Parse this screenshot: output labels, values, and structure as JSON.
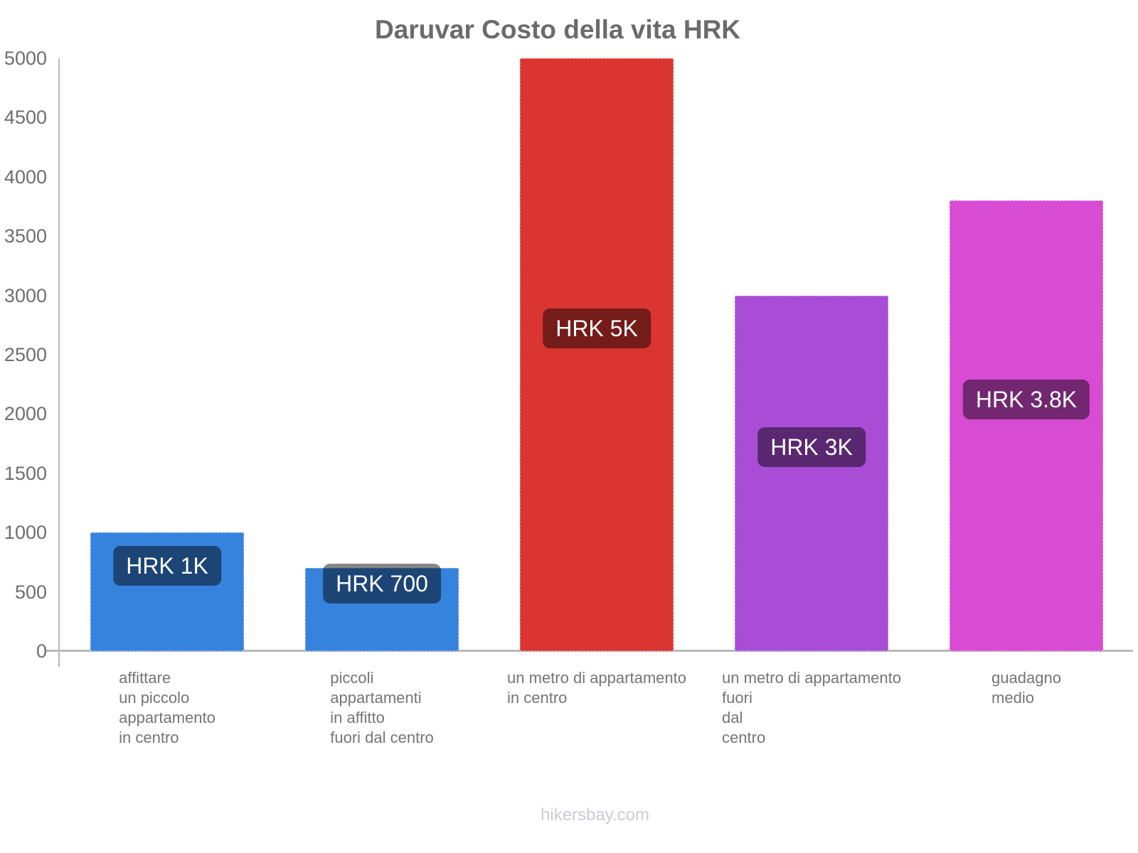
{
  "header": {
    "title": "Daruvar Costo della vita HRK"
  },
  "footer": {
    "text": "hikersbay.com"
  },
  "chart_data": {
    "type": "bar",
    "title": "Daruvar Costo della vita HRK",
    "currency": "HRK",
    "categories": [
      [
        "affittare",
        "un piccolo",
        "appartamento",
        "in centro"
      ],
      [
        "piccoli",
        "appartamenti",
        "in affitto",
        "fuori dal centro"
      ],
      [
        "un metro di appartamento",
        "in centro"
      ],
      [
        "un metro di appartamento",
        "fuori",
        "dal",
        "centro"
      ],
      [
        "guadagno",
        "medio"
      ]
    ],
    "values": [
      1000,
      700,
      5000,
      3000,
      3800
    ],
    "bar_labels": [
      "HRK 1K",
      "HRK 700",
      "HRK 5K",
      "HRK 3K",
      "HRK 3.8K"
    ],
    "bar_colors": [
      "#3583dd",
      "#3583dd",
      "#da3530",
      "#aa4dd6",
      "#d84bd3"
    ],
    "value_label_bg": "rgba(0,0,0,0.47)",
    "value_label_text_color": "#ffffff",
    "yticks": [
      0,
      500,
      1000,
      1500,
      2000,
      2500,
      3000,
      3500,
      4000,
      4500,
      5000
    ],
    "ylim": [
      0,
      5000
    ],
    "xlabel": "",
    "ylabel": "",
    "grid": false,
    "legend": false,
    "axis_color": "#b9b9b9",
    "tick_text_color": "#6e6e6e",
    "category_text_color": "#757575",
    "title_color": "#6b6b6b",
    "watermark_color": "#cbccd4"
  }
}
